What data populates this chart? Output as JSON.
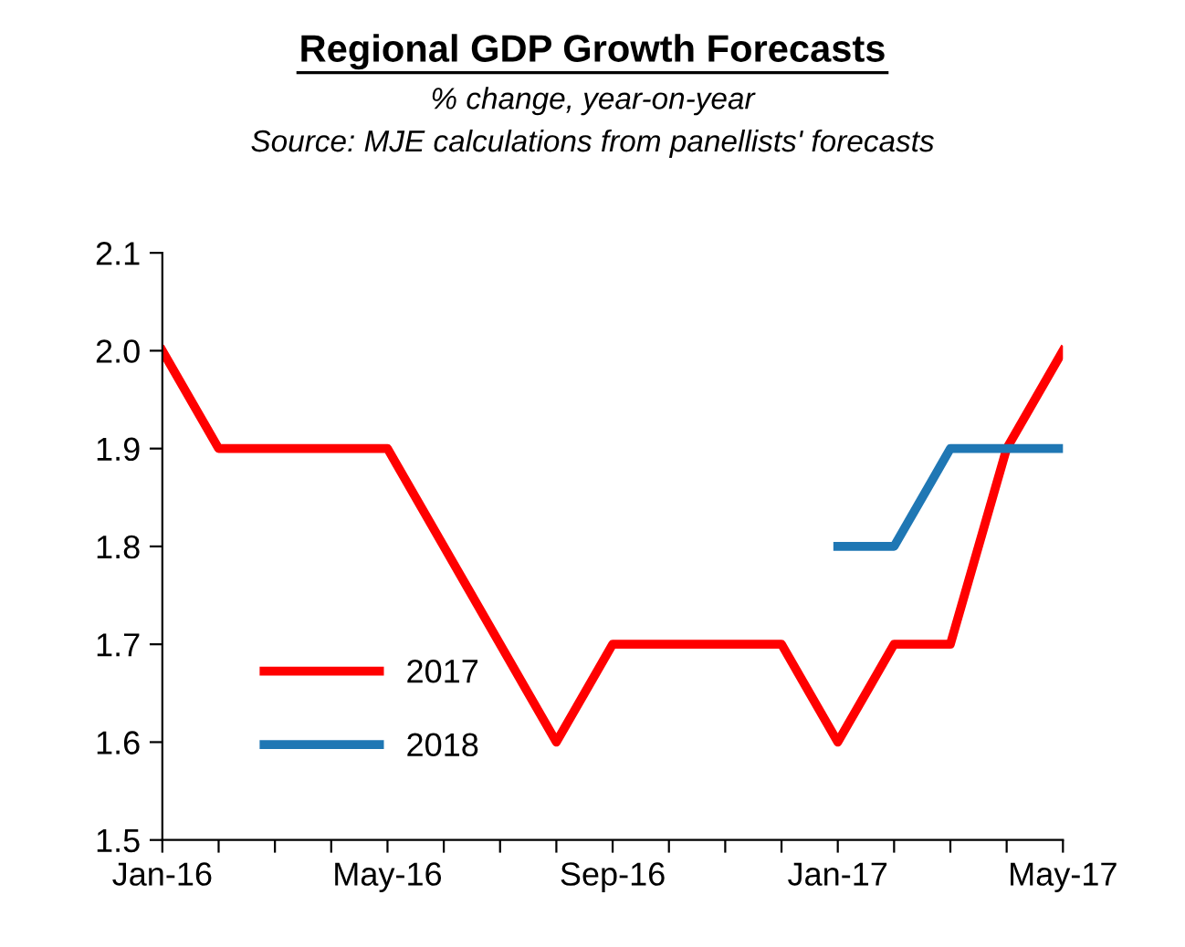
{
  "chart_data": {
    "type": "line",
    "title": "Regional GDP Growth Forecasts",
    "subtitle": "% change, year-on-year",
    "annotations": [
      "Source: MJE calculations from panellists' forecasts"
    ],
    "categories": [
      "Jan-16",
      null,
      null,
      null,
      "May-16",
      null,
      null,
      null,
      "Sep-16",
      null,
      null,
      null,
      "Jan-17",
      null,
      null,
      null,
      "May-17"
    ],
    "series": [
      {
        "name": "2017",
        "color": "#ff0000",
        "values": [
          2.0,
          1.9,
          1.9,
          1.9,
          1.9,
          1.8,
          1.7,
          1.6,
          1.7,
          1.7,
          1.7,
          1.7,
          1.6,
          1.7,
          1.7,
          1.9,
          2.0
        ]
      },
      {
        "name": "2018",
        "color": "#1f77b4",
        "values": [
          null,
          null,
          null,
          null,
          null,
          null,
          null,
          null,
          null,
          null,
          null,
          null,
          1.8,
          1.8,
          1.9,
          1.9,
          1.9
        ]
      }
    ],
    "ylim": [
      1.5,
      2.1
    ],
    "yticks": [
      1.5,
      1.6,
      1.7,
      1.8,
      1.9,
      {
        "value": 2,
        "label": "2.0"
      },
      2.1
    ],
    "grid": false,
    "legend": "left",
    "marker": "none",
    "line_style": "solid"
  }
}
